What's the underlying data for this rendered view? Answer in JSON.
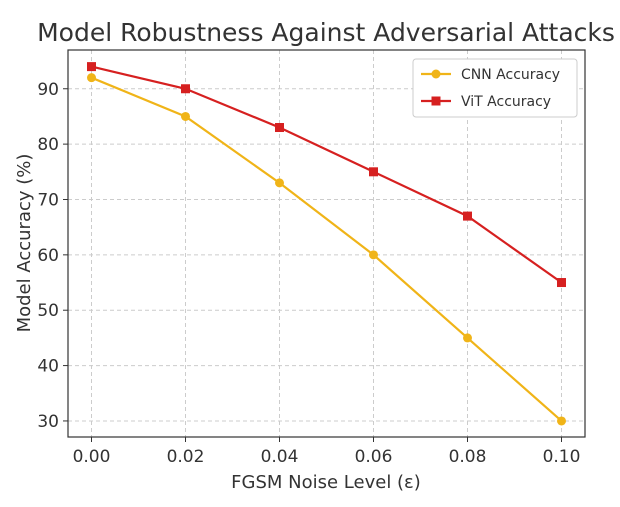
{
  "chart_data": {
    "type": "line",
    "title": "Model Robustness Against Adversarial Attacks",
    "xlabel": "FGSM Noise Level (ε)",
    "ylabel": "Model Accuracy (%)",
    "x": [
      0.0,
      0.02,
      0.04,
      0.06,
      0.08,
      0.1
    ],
    "xtick_labels": [
      "0.00",
      "0.02",
      "0.04",
      "0.06",
      "0.08",
      "0.10"
    ],
    "yticks": [
      30,
      40,
      50,
      60,
      70,
      80,
      90
    ],
    "ytick_labels": [
      "30",
      "40",
      "50",
      "60",
      "70",
      "80",
      "90"
    ],
    "xlim": [
      -0.005,
      0.105
    ],
    "ylim": [
      27.1,
      97
    ],
    "grid": true,
    "legend_position": "top-right",
    "series": [
      {
        "name": "CNN Accuracy",
        "color": "#f0b418",
        "marker": "circle",
        "values": [
          92,
          85,
          73,
          60,
          45,
          30
        ]
      },
      {
        "name": "ViT Accuracy",
        "color": "#d62020",
        "marker": "square",
        "values": [
          94,
          90,
          83,
          75,
          67,
          55
        ]
      }
    ]
  }
}
